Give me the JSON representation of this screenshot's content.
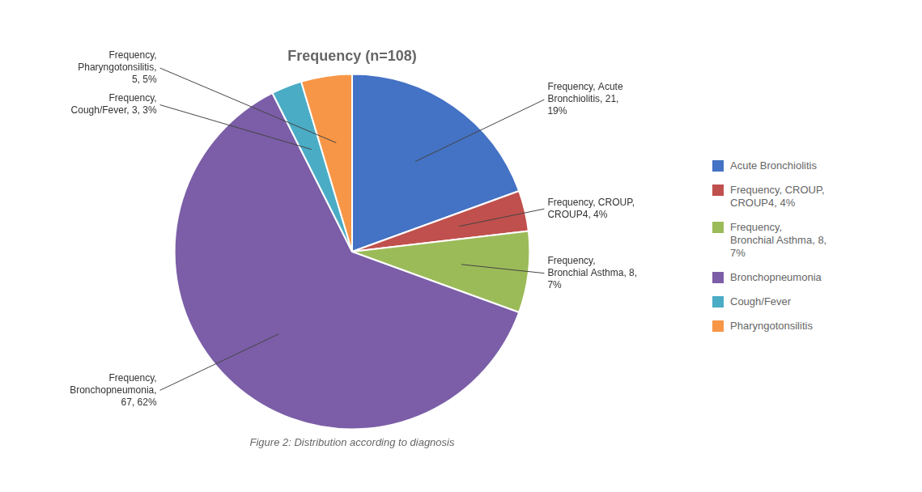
{
  "chart_data": {
    "type": "pie",
    "title": "Frequency (n=108)",
    "subtitle": "Figure 2: Distribution according to diagnosis",
    "categories": [
      "Acute Bronchiolitis",
      "Frequency, CROUP,\nCROUP4, 4%",
      "Frequency,\nBronchial Asthma, 8,\n7%",
      "Bronchopneumonia",
      "Cough/Fever",
      "Pharyngotonsilitis"
    ],
    "values": [
      21,
      4,
      8,
      67,
      3,
      5
    ],
    "colors": [
      "#4472C4",
      "#C0504D",
      "#9BBB59",
      "#7B5EA7",
      "#4BACC6",
      "#F79646"
    ],
    "data_labels": true,
    "value_labels": [
      "Frequency, Acute\nBronchiolitis, 21,\n19%",
      "Frequency, CROUP,\nCROUP4, 4%",
      "Frequency,\nBronchial Asthma, 8,\n7%",
      "Frequency,\nBronchopneumonia,\n67, 62%",
      "Frequency,\nCough/Fever, 3, 3%",
      "Frequency,\nPharyngotonsilitis,\n5, 5%"
    ],
    "legend": "right"
  }
}
